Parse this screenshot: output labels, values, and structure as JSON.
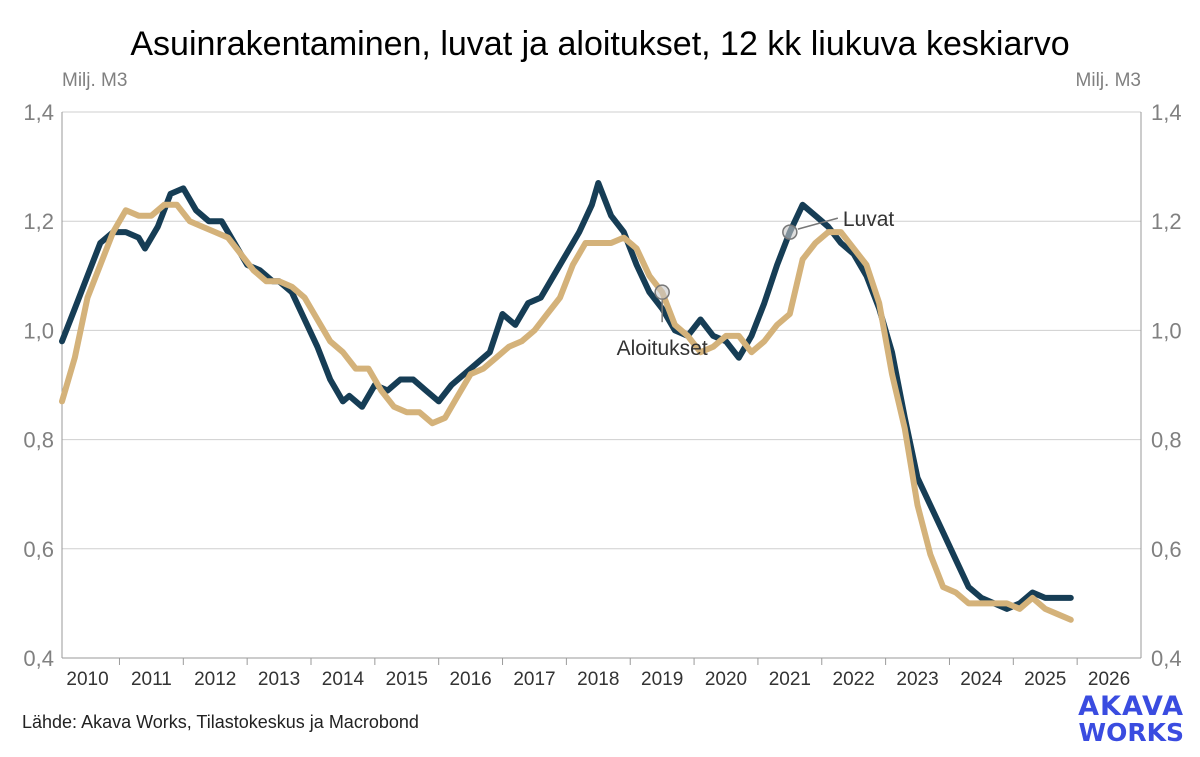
{
  "chart_data": {
    "type": "line",
    "title": "Asuinrakentaminen, luvat ja aloitukset, 12 kk liukuva keskiarvo",
    "ylabel_left": "Milj. M3",
    "ylabel_right": "Milj. M3",
    "ylim": [
      0.4,
      1.4
    ],
    "yticks": [
      "0,4",
      "0,6",
      "0,8",
      "1,0",
      "1,2",
      "1,4"
    ],
    "xlim": [
      2009.6,
      2026.5
    ],
    "xticks": [
      "2010",
      "2011",
      "2012",
      "2013",
      "2014",
      "2015",
      "2016",
      "2017",
      "2018",
      "2019",
      "2020",
      "2021",
      "2022",
      "2023",
      "2024",
      "2025",
      "2026"
    ],
    "grid": true,
    "colors": {
      "luvat": "#163d55",
      "aloitukset": "#d4b27a"
    },
    "annotations": [
      {
        "text": "Luvat",
        "series": "Luvat",
        "x": 2021.0
      },
      {
        "text": "Aloitukset",
        "series": "Aloitukset",
        "x": 2019.0
      }
    ],
    "series": [
      {
        "name": "Luvat",
        "color": "#163d55",
        "points": [
          [
            2009.6,
            0.98
          ],
          [
            2009.8,
            1.04
          ],
          [
            2010.0,
            1.1
          ],
          [
            2010.2,
            1.16
          ],
          [
            2010.4,
            1.18
          ],
          [
            2010.6,
            1.18
          ],
          [
            2010.8,
            1.17
          ],
          [
            2010.9,
            1.15
          ],
          [
            2011.1,
            1.19
          ],
          [
            2011.3,
            1.25
          ],
          [
            2011.5,
            1.26
          ],
          [
            2011.7,
            1.22
          ],
          [
            2011.9,
            1.2
          ],
          [
            2012.1,
            1.2
          ],
          [
            2012.3,
            1.16
          ],
          [
            2012.5,
            1.12
          ],
          [
            2012.7,
            1.11
          ],
          [
            2012.9,
            1.09
          ],
          [
            2013.0,
            1.09
          ],
          [
            2013.2,
            1.07
          ],
          [
            2013.4,
            1.02
          ],
          [
            2013.6,
            0.97
          ],
          [
            2013.8,
            0.91
          ],
          [
            2014.0,
            0.87
          ],
          [
            2014.1,
            0.88
          ],
          [
            2014.3,
            0.86
          ],
          [
            2014.5,
            0.9
          ],
          [
            2014.7,
            0.89
          ],
          [
            2014.9,
            0.91
          ],
          [
            2015.1,
            0.91
          ],
          [
            2015.3,
            0.89
          ],
          [
            2015.5,
            0.87
          ],
          [
            2015.7,
            0.9
          ],
          [
            2015.9,
            0.92
          ],
          [
            2016.1,
            0.94
          ],
          [
            2016.3,
            0.96
          ],
          [
            2016.5,
            1.03
          ],
          [
            2016.7,
            1.01
          ],
          [
            2016.9,
            1.05
          ],
          [
            2017.1,
            1.06
          ],
          [
            2017.3,
            1.1
          ],
          [
            2017.5,
            1.14
          ],
          [
            2017.7,
            1.18
          ],
          [
            2017.9,
            1.23
          ],
          [
            2018.0,
            1.27
          ],
          [
            2018.2,
            1.21
          ],
          [
            2018.4,
            1.18
          ],
          [
            2018.6,
            1.12
          ],
          [
            2018.8,
            1.07
          ],
          [
            2019.0,
            1.04
          ],
          [
            2019.2,
            1.0
          ],
          [
            2019.4,
            0.99
          ],
          [
            2019.6,
            1.02
          ],
          [
            2019.8,
            0.99
          ],
          [
            2020.0,
            0.98
          ],
          [
            2020.2,
            0.95
          ],
          [
            2020.4,
            0.99
          ],
          [
            2020.6,
            1.05
          ],
          [
            2020.8,
            1.12
          ],
          [
            2021.0,
            1.18
          ],
          [
            2021.2,
            1.23
          ],
          [
            2021.4,
            1.21
          ],
          [
            2021.6,
            1.19
          ],
          [
            2021.8,
            1.16
          ],
          [
            2022.0,
            1.14
          ],
          [
            2022.2,
            1.1
          ],
          [
            2022.4,
            1.04
          ],
          [
            2022.6,
            0.96
          ],
          [
            2022.8,
            0.84
          ],
          [
            2023.0,
            0.73
          ],
          [
            2023.2,
            0.68
          ],
          [
            2023.4,
            0.63
          ],
          [
            2023.6,
            0.58
          ],
          [
            2023.8,
            0.53
          ],
          [
            2024.0,
            0.51
          ],
          [
            2024.2,
            0.5
          ],
          [
            2024.4,
            0.49
          ],
          [
            2024.6,
            0.5
          ],
          [
            2024.8,
            0.52
          ],
          [
            2025.0,
            0.51
          ],
          [
            2025.2,
            0.51
          ],
          [
            2025.4,
            0.51
          ]
        ]
      },
      {
        "name": "Aloitukset",
        "color": "#d4b27a",
        "points": [
          [
            2009.6,
            0.87
          ],
          [
            2009.8,
            0.95
          ],
          [
            2010.0,
            1.06
          ],
          [
            2010.2,
            1.12
          ],
          [
            2010.4,
            1.18
          ],
          [
            2010.6,
            1.22
          ],
          [
            2010.8,
            1.21
          ],
          [
            2011.0,
            1.21
          ],
          [
            2011.2,
            1.23
          ],
          [
            2011.4,
            1.23
          ],
          [
            2011.6,
            1.2
          ],
          [
            2011.8,
            1.19
          ],
          [
            2012.0,
            1.18
          ],
          [
            2012.2,
            1.17
          ],
          [
            2012.4,
            1.14
          ],
          [
            2012.6,
            1.11
          ],
          [
            2012.8,
            1.09
          ],
          [
            2013.0,
            1.09
          ],
          [
            2013.2,
            1.08
          ],
          [
            2013.4,
            1.06
          ],
          [
            2013.6,
            1.02
          ],
          [
            2013.8,
            0.98
          ],
          [
            2014.0,
            0.96
          ],
          [
            2014.2,
            0.93
          ],
          [
            2014.4,
            0.93
          ],
          [
            2014.6,
            0.89
          ],
          [
            2014.8,
            0.86
          ],
          [
            2015.0,
            0.85
          ],
          [
            2015.2,
            0.85
          ],
          [
            2015.4,
            0.83
          ],
          [
            2015.6,
            0.84
          ],
          [
            2015.8,
            0.88
          ],
          [
            2016.0,
            0.92
          ],
          [
            2016.2,
            0.93
          ],
          [
            2016.4,
            0.95
          ],
          [
            2016.6,
            0.97
          ],
          [
            2016.8,
            0.98
          ],
          [
            2017.0,
            1.0
          ],
          [
            2017.2,
            1.03
          ],
          [
            2017.4,
            1.06
          ],
          [
            2017.6,
            1.12
          ],
          [
            2017.8,
            1.16
          ],
          [
            2018.0,
            1.16
          ],
          [
            2018.2,
            1.16
          ],
          [
            2018.4,
            1.17
          ],
          [
            2018.6,
            1.15
          ],
          [
            2018.8,
            1.1
          ],
          [
            2019.0,
            1.07
          ],
          [
            2019.2,
            1.01
          ],
          [
            2019.4,
            0.99
          ],
          [
            2019.6,
            0.96
          ],
          [
            2019.8,
            0.97
          ],
          [
            2020.0,
            0.99
          ],
          [
            2020.2,
            0.99
          ],
          [
            2020.4,
            0.96
          ],
          [
            2020.6,
            0.98
          ],
          [
            2020.8,
            1.01
          ],
          [
            2021.0,
            1.03
          ],
          [
            2021.2,
            1.13
          ],
          [
            2021.4,
            1.16
          ],
          [
            2021.6,
            1.18
          ],
          [
            2021.8,
            1.18
          ],
          [
            2022.0,
            1.15
          ],
          [
            2022.2,
            1.12
          ],
          [
            2022.4,
            1.05
          ],
          [
            2022.6,
            0.92
          ],
          [
            2022.8,
            0.82
          ],
          [
            2023.0,
            0.68
          ],
          [
            2023.2,
            0.59
          ],
          [
            2023.4,
            0.53
          ],
          [
            2023.6,
            0.52
          ],
          [
            2023.8,
            0.5
          ],
          [
            2024.0,
            0.5
          ],
          [
            2024.2,
            0.5
          ],
          [
            2024.4,
            0.5
          ],
          [
            2024.6,
            0.49
          ],
          [
            2024.8,
            0.51
          ],
          [
            2025.0,
            0.49
          ],
          [
            2025.2,
            0.48
          ],
          [
            2025.4,
            0.47
          ]
        ]
      }
    ]
  },
  "source": "Lähde: Akava Works, Tilastokeskus ja Macrobond",
  "logo": {
    "line1": "AKAVA",
    "line2": "WORKS",
    "color": "#3a4ce0"
  }
}
